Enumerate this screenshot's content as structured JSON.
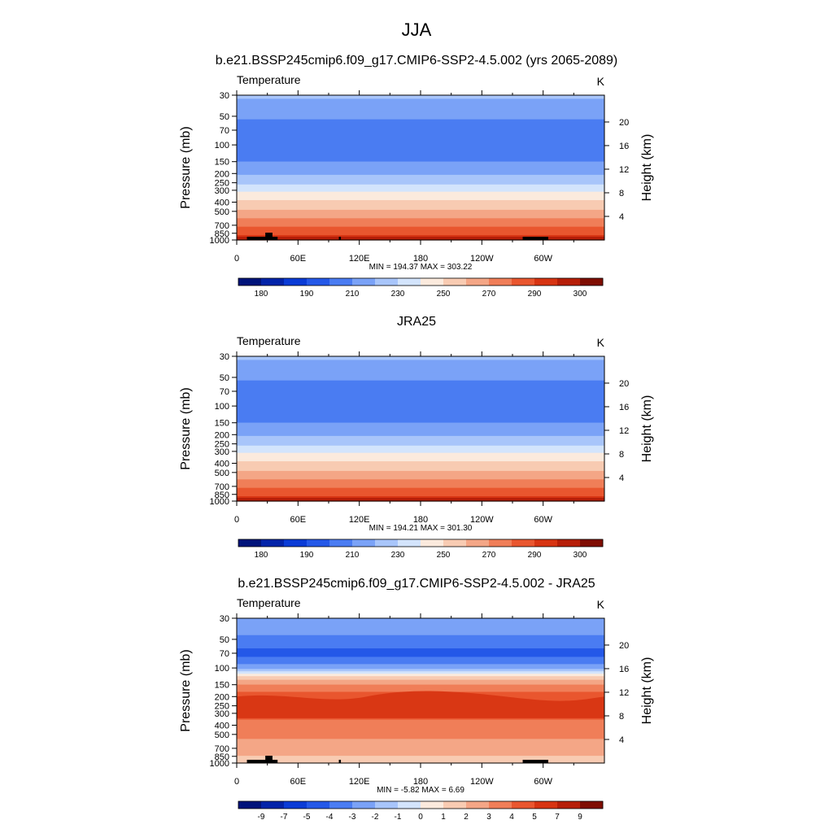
{
  "figure": {
    "title": "JJA"
  },
  "colorbar_colors": {
    "temperature": [
      "#00137a",
      "#0223a9",
      "#0a3bd6",
      "#2458e8",
      "#4a7cf2",
      "#7aa2f7",
      "#a8c5fa",
      "#d3e4fc",
      "#fbeadd",
      "#f8cbb2",
      "#f4a686",
      "#f07e58",
      "#e9562f",
      "#d73412",
      "#b61e08",
      "#7f0d02"
    ],
    "difference": [
      "#00137a",
      "#0223a9",
      "#0a3bd6",
      "#2458e8",
      "#4a7cf2",
      "#7aa2f7",
      "#a8c5fa",
      "#d3e4fc",
      "#fbeadd",
      "#f8cbb2",
      "#f4a686",
      "#f07e58",
      "#e9562f",
      "#d73412",
      "#b61e08",
      "#7f0d02"
    ]
  },
  "chart_data": [
    {
      "type": "heatmap",
      "title": "b.e21.BSSP245cmip6.f09_g17.CMIP6-SSP2-4.5.002 (yrs 2065-2089)",
      "left_label": "Temperature",
      "units": "K",
      "ylabel": "Pressure (mb)",
      "ylabel_right": "Height (km)",
      "x_ticks": [
        "0",
        "60E",
        "120E",
        "180",
        "120W",
        "60W"
      ],
      "y_ticks": [
        "30",
        "50",
        "70",
        "100",
        "150",
        "200",
        "250",
        "300",
        "400",
        "500",
        "700",
        "850",
        "1000"
      ],
      "y_ticks_right": [
        "20",
        "16",
        "12",
        "8",
        "4"
      ],
      "stats": "MIN = 194.37  MAX = 303.22",
      "min": 194.37,
      "max": 303.22,
      "colorbar_labels": [
        "180",
        "190",
        "210",
        "230",
        "250",
        "270",
        "290",
        "300"
      ]
    },
    {
      "type": "heatmap",
      "title": "JRA25",
      "left_label": "Temperature",
      "units": "K",
      "ylabel": "Pressure (mb)",
      "ylabel_right": "Height (km)",
      "x_ticks": [
        "0",
        "60E",
        "120E",
        "180",
        "120W",
        "60W"
      ],
      "y_ticks": [
        "30",
        "50",
        "70",
        "100",
        "150",
        "200",
        "250",
        "300",
        "400",
        "500",
        "700",
        "850",
        "1000"
      ],
      "y_ticks_right": [
        "20",
        "16",
        "12",
        "8",
        "4"
      ],
      "stats": "MIN = 194.21  MAX = 301.30",
      "min": 194.21,
      "max": 301.3,
      "colorbar_labels": [
        "180",
        "190",
        "210",
        "230",
        "250",
        "270",
        "290",
        "300"
      ]
    },
    {
      "type": "heatmap",
      "title": "b.e21.BSSP245cmip6.f09_g17.CMIP6-SSP2-4.5.002 - JRA25",
      "left_label": "Temperature",
      "units": "K",
      "ylabel": "Pressure (mb)",
      "ylabel_right": "Height (km)",
      "x_ticks": [
        "0",
        "60E",
        "120E",
        "180",
        "120W",
        "60W"
      ],
      "y_ticks": [
        "30",
        "50",
        "70",
        "100",
        "150",
        "200",
        "250",
        "300",
        "400",
        "500",
        "700",
        "850",
        "1000"
      ],
      "y_ticks_right": [
        "20",
        "16",
        "12",
        "8",
        "4"
      ],
      "stats": "MIN =  -5.82  MAX =   6.69",
      "min": -5.82,
      "max": 6.69,
      "colorbar_labels": [
        "-9",
        "-7",
        "-5",
        "-4",
        "-3",
        "-2",
        "-1",
        "0",
        "1",
        "2",
        "3",
        "4",
        "5",
        "7",
        "9"
      ]
    }
  ]
}
